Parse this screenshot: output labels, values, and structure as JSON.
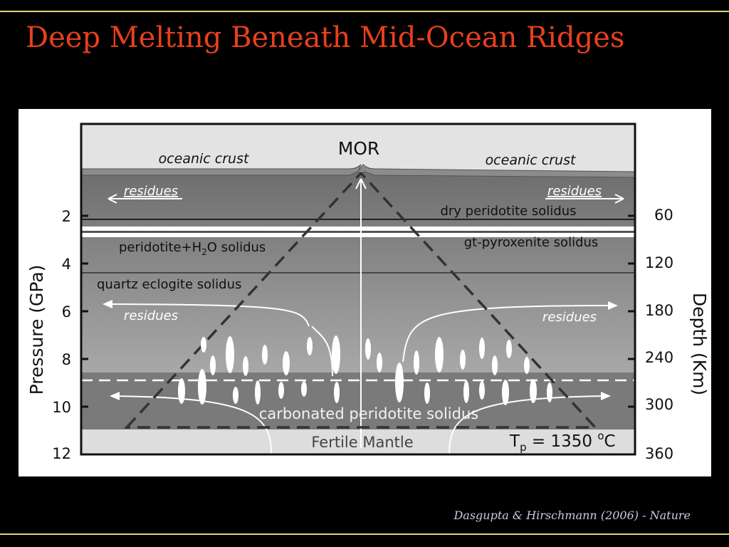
{
  "slide": {
    "title": "Deep Melting Beneath Mid-Ocean Ridges",
    "citation": "Dasgupta & Hirschmann (2006) - Nature",
    "title_color": "#e8401c",
    "rule_color": "#e8d070"
  },
  "diagram": {
    "mor_label": "MOR",
    "crust_left": "oceanic crust",
    "crust_right": "oceanic crust",
    "residues": [
      "residues",
      "residues",
      "residues",
      "residues"
    ],
    "dry_peridotite": "dry peridotite solidus",
    "gt_pyroxenite": "gt-pyroxenite solidus",
    "peridotite_h2o": {
      "pre": "peridotite+H",
      "sub": "2",
      "post": "O solidus"
    },
    "quartz_eclogite": "quartz eclogite solidus",
    "carbonated": "carbonated peridotite solidus",
    "fertile_mantle": "Fertile Mantle",
    "tp": {
      "pre": "T",
      "sub": "p",
      "mid": " = 1350 ",
      "sup": "o",
      "post": "C"
    },
    "left_axis": {
      "title": "Pressure (GPa)",
      "ticks": [
        "2",
        "4",
        "6",
        "8",
        "10",
        "12"
      ]
    },
    "right_axis": {
      "title": "Depth (Km)",
      "ticks": [
        "60",
        "120",
        "180",
        "240",
        "300",
        "360"
      ]
    }
  }
}
